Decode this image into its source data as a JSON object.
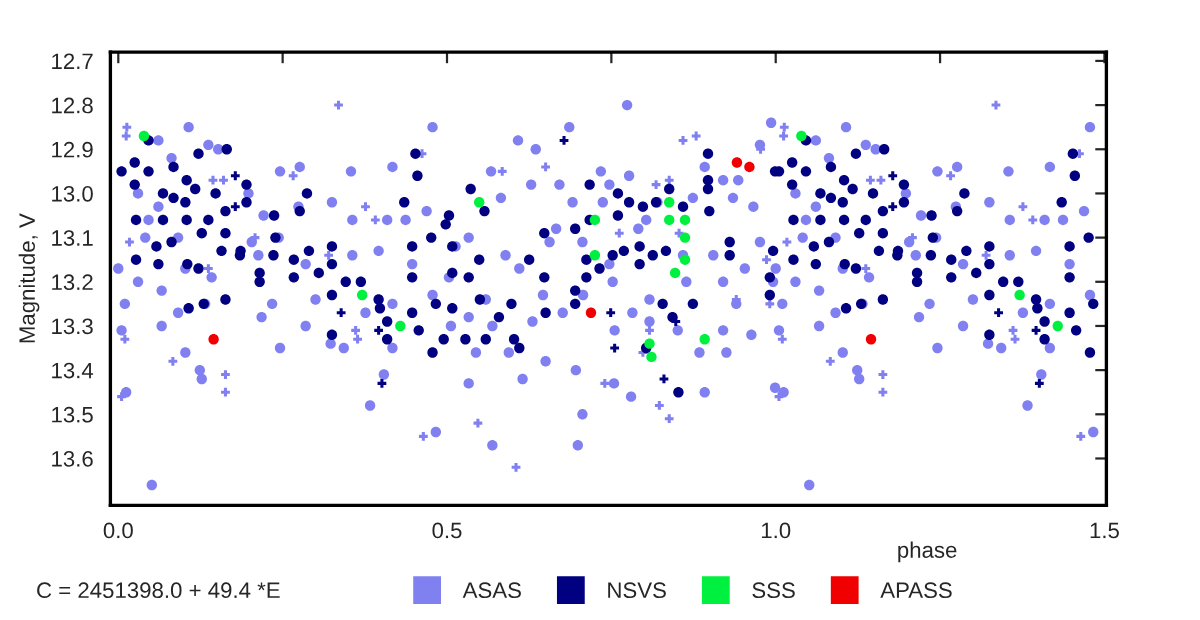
{
  "chart_data": {
    "type": "scatter",
    "xlabel": "phase",
    "ylabel": "Magnitude, V",
    "annotations": [
      "C = 2451398.0 + 49.4 *E"
    ],
    "xlim": [
      -0.012,
      1.503
    ],
    "ylim": [
      13.706,
      12.68
    ],
    "xticks": [
      {
        "value": 0,
        "label": "0.0"
      },
      {
        "value": 0.25,
        "label": null
      },
      {
        "value": 0.5,
        "label": "0.5"
      },
      {
        "value": 0.75,
        "label": null
      },
      {
        "value": 1,
        "label": "1.0"
      },
      {
        "value": 1.25,
        "label": null
      },
      {
        "value": 1.5,
        "label": "1.5"
      }
    ],
    "yticks": [
      12.7,
      12.8,
      12.9,
      {
        "value": 13,
        "label": "13.0"
      },
      13.1,
      13.2,
      13.3,
      13.4,
      13.5,
      13.6
    ],
    "grid": false,
    "legend": "bottom",
    "series": [
      {
        "name": "ASAS",
        "color": "#8080f0",
        "marker": "circle",
        "x": [
          0.051,
          0.012,
          0.005,
          0.107,
          0.061,
          0.137,
          0.152,
          0.081,
          0.246,
          0.276,
          0.354,
          0.417,
          0.478,
          0.061,
          0.046,
          0.03,
          0.198,
          0.221,
          0.274,
          0.325,
          0.356,
          0.409,
          0.437,
          0.469,
          0.244,
          0.203,
          0.091,
          0.041,
          0.0,
          0.03,
          0.066,
          0.102,
          0.142,
          0.213,
          0.285,
          0.356,
          0.396,
          0.447,
          0.478,
          0.01,
          0.091,
          0.132,
          0.234,
          0.3,
          0.376,
          0.417,
          0.066,
          0.102,
          0.218,
          0.285,
          0.323,
          0.343,
          0.417,
          0.246,
          0.124,
          0.127,
          0.404,
          0.383,
          0.483,
          0.774,
          0.686,
          0.993,
          0.608,
          0.635,
          0.567,
          0.628,
          0.671,
          0.734,
          0.747,
          0.777,
          0.892,
          0.92,
          0.943,
          0.976,
          0.582,
          0.691,
          0.737,
          0.803,
          0.82,
          0.874,
          0.935,
          0.966,
          0.533,
          0.513,
          0.589,
          0.666,
          0.656,
          0.706,
          0.747,
          0.791,
          0.859,
          0.905,
          0.953,
          0.976,
          0.503,
          0.559,
          0.61,
          0.646,
          0.707,
          0.752,
          0.808,
          0.864,
          0.92,
          0.94,
          0.996,
          0.506,
          0.533,
          0.569,
          0.63,
          0.676,
          0.755,
          0.782,
          0.808,
          0.851,
          0.92,
          0.963,
          0.544,
          0.594,
          0.65,
          0.696,
          0.884,
          0.925,
          0.999,
          0.533,
          0.615,
          0.754,
          0.78,
          0.892,
          0.569,
          0.706,
          0.699,
          1.051,
          1.012,
          1.005,
          1.107,
          1.061,
          1.137,
          1.152,
          1.081,
          1.246,
          1.276,
          1.354,
          1.417,
          1.478,
          1.061,
          1.046,
          1.03,
          1.198,
          1.221,
          1.274,
          1.325,
          1.356,
          1.409,
          1.437,
          1.469,
          1.244,
          1.203,
          1.091,
          1.041,
          1.0,
          1.03,
          1.066,
          1.102,
          1.142,
          1.213,
          1.285,
          1.356,
          1.396,
          1.447,
          1.478,
          1.01,
          1.091,
          1.132,
          1.234,
          1.3,
          1.376,
          1.417,
          1.066,
          1.102,
          1.218,
          1.285,
          1.323,
          1.343,
          1.417,
          1.246,
          1.124,
          1.127,
          1.404,
          1.383,
          1.483
        ],
        "values": [
          13.66,
          13.45,
          13.31,
          12.85,
          12.88,
          12.89,
          12.9,
          12.92,
          12.95,
          12.94,
          12.95,
          12.94,
          12.85,
          13.03,
          13.06,
          13.0,
          13.0,
          13.05,
          13.03,
          13.02,
          13.06,
          13.06,
          13.06,
          13.04,
          13.1,
          13.11,
          13.1,
          13.1,
          13.17,
          13.2,
          13.22,
          13.17,
          13.19,
          13.14,
          13.16,
          13.14,
          13.13,
          13.16,
          13.23,
          13.25,
          13.27,
          13.25,
          13.25,
          13.24,
          13.27,
          13.25,
          13.3,
          13.36,
          13.28,
          13.3,
          13.34,
          13.35,
          13.35,
          13.35,
          13.4,
          13.42,
          13.41,
          13.48,
          13.54,
          12.8,
          12.85,
          12.84,
          12.88,
          12.9,
          12.95,
          12.98,
          12.98,
          12.95,
          12.98,
          12.96,
          12.94,
          12.97,
          12.97,
          12.89,
          13.01,
          13.02,
          13.02,
          13.06,
          13.02,
          13.01,
          13.01,
          13.03,
          13.1,
          13.12,
          13.14,
          13.08,
          13.11,
          13.11,
          13.16,
          13.08,
          13.14,
          13.14,
          13.17,
          13.11,
          13.19,
          13.24,
          13.17,
          13.23,
          13.23,
          13.2,
          13.24,
          13.2,
          13.2,
          13.25,
          13.2,
          13.3,
          13.28,
          13.3,
          13.29,
          13.27,
          13.31,
          13.27,
          13.29,
          13.31,
          13.31,
          13.32,
          13.36,
          13.36,
          13.38,
          13.4,
          13.36,
          13.36,
          13.44,
          13.43,
          13.42,
          13.43,
          13.46,
          13.45,
          13.57,
          13.5,
          13.57,
          13.66,
          13.45,
          13.31,
          12.85,
          12.88,
          12.89,
          12.9,
          12.92,
          12.95,
          12.94,
          12.95,
          12.94,
          12.85,
          13.03,
          13.06,
          13.0,
          13.0,
          13.05,
          13.03,
          13.02,
          13.06,
          13.06,
          13.06,
          13.04,
          13.1,
          13.11,
          13.1,
          13.1,
          13.17,
          13.2,
          13.22,
          13.17,
          13.19,
          13.14,
          13.16,
          13.14,
          13.13,
          13.16,
          13.23,
          13.25,
          13.27,
          13.25,
          13.25,
          13.24,
          13.27,
          13.25,
          13.3,
          13.36,
          13.28,
          13.3,
          13.34,
          13.35,
          13.35,
          13.35,
          13.4,
          13.42,
          13.41,
          13.48,
          13.54
        ]
      },
      {
        "color": "#8080f0",
        "marker": "cross",
        "x": [
          0.013,
          0.012,
          0.335,
          0.144,
          0.16,
          0.266,
          0.376,
          0.391,
          0.462,
          0.017,
          0.137,
          0.208,
          0.32,
          0.01,
          0.083,
          0.163,
          0.163,
          0.005,
          0.361,
          0.364,
          0.464,
          0.65,
          0.584,
          0.859,
          0.879,
          0.977,
          0.838,
          0.818,
          0.762,
          0.853,
          0.808,
          0.798,
          0.838,
          0.823,
          0.74,
          0.547,
          0.605,
          0.991,
          0.94,
          0.986,
          1.013,
          1.012,
          1.335,
          1.144,
          1.16,
          1.266,
          1.376,
          1.391,
          1.462,
          1.017,
          1.137,
          1.208,
          1.32,
          1.01,
          1.083,
          1.163,
          1.163,
          1.005,
          1.361,
          1.364,
          1.464
        ],
        "values": [
          12.85,
          12.87,
          12.8,
          12.97,
          12.97,
          12.96,
          13.03,
          13.06,
          12.91,
          13.11,
          13.17,
          13.1,
          13.14,
          13.33,
          13.38,
          13.41,
          13.45,
          13.46,
          13.31,
          13.33,
          13.55,
          12.94,
          12.95,
          12.88,
          12.87,
          12.9,
          12.97,
          12.98,
          13.09,
          13.09,
          13.31,
          13.36,
          13.51,
          13.48,
          13.43,
          13.52,
          13.62,
          13.25,
          13.24,
          13.15,
          12.85,
          12.87,
          12.8,
          12.97,
          12.97,
          12.96,
          13.03,
          13.06,
          12.91,
          13.11,
          13.17,
          13.1,
          13.14,
          13.33,
          13.38,
          13.41,
          13.45,
          13.46,
          13.31,
          13.33,
          13.55
        ]
      },
      {
        "name": "NSVS",
        "color": "#000080",
        "marker": "circle",
        "x": [
          0.046,
          0.005,
          0.025,
          0.046,
          0.025,
          0.084,
          0.104,
          0.165,
          0.122,
          0.452,
          0.455,
          0.068,
          0.084,
          0.102,
          0.117,
          0.148,
          0.195,
          0.195,
          0.287,
          0.435,
          0.027,
          0.068,
          0.104,
          0.137,
          0.163,
          0.237,
          0.276,
          0.127,
          0.163,
          0.058,
          0.081,
          0.157,
          0.186,
          0.239,
          0.29,
          0.325,
          0.447,
          0.476,
          0.027,
          0.061,
          0.105,
          0.122,
          0.185,
          0.236,
          0.267,
          0.325,
          0.215,
          0.267,
          0.305,
          0.346,
          0.369,
          0.447,
          0.215,
          0.163,
          0.325,
          0.396,
          0.107,
          0.13,
          0.398,
          0.447,
          0.483,
          0.409,
          0.457,
          0.325,
          0.409,
          0.478,
          0.897,
          0.999,
          0.897,
          0.897,
          0.899,
          0.717,
          0.76,
          0.777,
          0.798,
          0.818,
          0.838,
          0.859,
          0.536,
          0.557,
          0.503,
          0.498,
          0.717,
          0.76,
          0.695,
          0.648,
          0.769,
          0.793,
          0.813,
          0.833,
          0.93,
          0.93,
          0.996,
          0.508,
          0.549,
          0.508,
          0.533,
          0.625,
          0.648,
          0.712,
          0.732,
          0.752,
          0.793,
          0.712,
          0.695,
          0.695,
          0.55,
          0.579,
          0.598,
          0.65,
          0.508,
          0.828,
          0.843,
          0.874,
          0.991,
          0.991,
          0.495,
          0.528,
          0.559,
          0.602,
          0.61,
          0.852,
          0.803,
          1.046,
          1.005,
          1.025,
          1.046,
          1.025,
          1.084,
          1.104,
          1.165,
          1.122,
          1.452,
          1.455,
          1.068,
          1.084,
          1.102,
          1.117,
          1.148,
          1.195,
          1.195,
          1.287,
          1.435,
          1.027,
          1.068,
          1.104,
          1.137,
          1.163,
          1.237,
          1.276,
          1.127,
          1.163,
          1.058,
          1.081,
          1.157,
          1.186,
          1.239,
          1.29,
          1.325,
          1.447,
          1.476,
          1.027,
          1.061,
          1.105,
          1.122,
          1.185,
          1.236,
          1.267,
          1.325,
          1.215,
          1.267,
          1.305,
          1.346,
          1.369,
          1.447,
          1.215,
          1.163,
          1.325,
          1.396,
          1.107,
          1.13,
          1.398,
          1.447,
          1.483,
          1.409,
          1.457,
          1.325,
          1.409,
          1.478
        ],
        "values": [
          12.88,
          12.95,
          12.93,
          12.95,
          12.98,
          12.94,
          12.97,
          12.9,
          12.91,
          12.91,
          12.96,
          13.0,
          13.01,
          13.02,
          12.99,
          13.0,
          12.98,
          13.02,
          13.0,
          13.02,
          13.06,
          13.06,
          13.06,
          13.06,
          13.04,
          13.05,
          13.04,
          13.09,
          13.09,
          13.12,
          13.11,
          13.13,
          13.13,
          13.1,
          13.13,
          13.12,
          13.12,
          13.1,
          13.15,
          13.16,
          13.16,
          13.17,
          13.14,
          13.14,
          13.15,
          13.16,
          13.18,
          13.19,
          13.18,
          13.2,
          13.2,
          13.19,
          13.2,
          13.24,
          13.23,
          13.24,
          13.26,
          13.25,
          13.26,
          13.27,
          13.25,
          13.29,
          13.31,
          13.32,
          13.33,
          13.36,
          12.91,
          12.95,
          12.97,
          12.99,
          13.04,
          12.98,
          13.0,
          13.02,
          13.03,
          13.02,
          12.99,
          13.03,
          12.99,
          13.04,
          13.05,
          13.07,
          13.06,
          13.05,
          13.08,
          13.09,
          13.13,
          13.12,
          13.14,
          13.13,
          13.11,
          13.14,
          13.13,
          13.12,
          13.15,
          13.18,
          13.19,
          13.15,
          13.19,
          13.15,
          13.17,
          13.14,
          13.16,
          13.19,
          13.22,
          13.25,
          13.24,
          13.28,
          13.25,
          13.27,
          13.26,
          13.25,
          13.28,
          13.25,
          13.19,
          13.23,
          13.33,
          13.33,
          13.33,
          13.33,
          13.35,
          13.45,
          13.35,
          12.88,
          12.95,
          12.93,
          12.95,
          12.98,
          12.94,
          12.97,
          12.9,
          12.91,
          12.91,
          12.96,
          13.0,
          13.01,
          13.02,
          12.99,
          13.0,
          12.98,
          13.02,
          13.0,
          13.02,
          13.06,
          13.06,
          13.06,
          13.06,
          13.04,
          13.05,
          13.04,
          13.09,
          13.09,
          13.12,
          13.11,
          13.13,
          13.13,
          13.1,
          13.13,
          13.12,
          13.12,
          13.1,
          13.15,
          13.16,
          13.16,
          13.17,
          13.14,
          13.14,
          13.15,
          13.16,
          13.18,
          13.19,
          13.18,
          13.2,
          13.2,
          13.19,
          13.2,
          13.24,
          13.23,
          13.24,
          13.26,
          13.25,
          13.26,
          13.27,
          13.25,
          13.29,
          13.31,
          13.32,
          13.33,
          13.36
        ]
      },
      {
        "color": "#000080",
        "marker": "cross",
        "x": [
          0.178,
          0.178,
          0.339,
          0.396,
          0.401,
          0.678,
          0.749,
          0.755,
          0.83,
          0.848,
          1.178,
          1.178,
          1.339,
          1.396,
          1.401
        ],
        "values": [
          12.96,
          13.03,
          13.27,
          13.31,
          13.43,
          12.88,
          13.27,
          13.35,
          13.42,
          13.29,
          12.96,
          13.03,
          13.27,
          13.31,
          13.43
        ]
      },
      {
        "name": "SSS",
        "color": "#00f040",
        "marker": "circle",
        "x": [
          0.039,
          0.371,
          0.429,
          0.549,
          0.838,
          0.725,
          0.838,
          0.862,
          0.862,
          0.725,
          0.862,
          0.847,
          0.808,
          0.811,
          0.892,
          1.039,
          1.371,
          1.429
        ],
        "values": [
          12.87,
          13.23,
          13.3,
          13.02,
          13.02,
          13.06,
          13.06,
          13.06,
          13.1,
          13.14,
          13.15,
          13.18,
          13.34,
          13.37,
          13.33,
          12.87,
          13.23,
          13.3
        ]
      },
      {
        "name": "APASS",
        "color": "#f00000",
        "marker": "circle",
        "x": [
          0.145,
          0.719,
          0.941,
          0.96,
          1.145
        ],
        "values": [
          13.33,
          13.27,
          12.93,
          12.94,
          13.33
        ]
      }
    ]
  }
}
